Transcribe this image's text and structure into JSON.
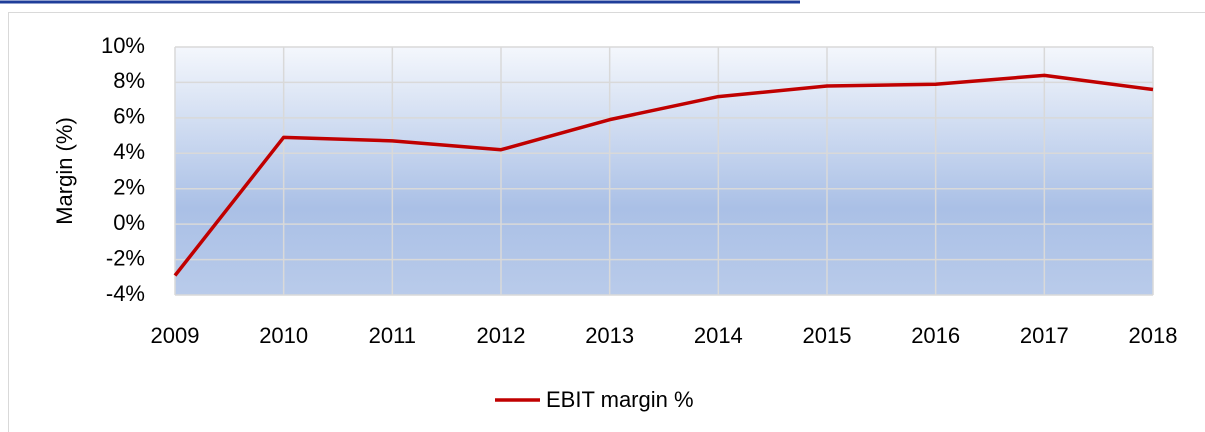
{
  "chart_data": {
    "type": "line",
    "y_label": "Margin (%)",
    "x": [
      2009,
      2010,
      2011,
      2012,
      2013,
      2014,
      2015,
      2016,
      2017,
      2018
    ],
    "xlim": [
      2009,
      2018
    ],
    "xticks": [
      2009,
      2010,
      2011,
      2012,
      2013,
      2014,
      2015,
      2016,
      2017,
      2018
    ],
    "series": [
      {
        "name": "EBIT margin %",
        "color": "#c00000",
        "values": [
          -2.9,
          4.9,
          4.7,
          4.2,
          5.9,
          7.2,
          7.8,
          7.9,
          8.4,
          7.6
        ]
      }
    ],
    "ylim": [
      -4,
      10
    ],
    "yticks": [
      {
        "value": -4,
        "label": "-4%"
      },
      {
        "value": -2,
        "label": "-2%"
      },
      {
        "value": 0,
        "label": "0%"
      },
      {
        "value": 2,
        "label": "2%"
      },
      {
        "value": 4,
        "label": "4%"
      },
      {
        "value": 6,
        "label": "6%"
      },
      {
        "value": 8,
        "label": "8%"
      },
      {
        "value": 10,
        "label": "10%"
      }
    ],
    "grid": true,
    "legend": "bottom"
  }
}
